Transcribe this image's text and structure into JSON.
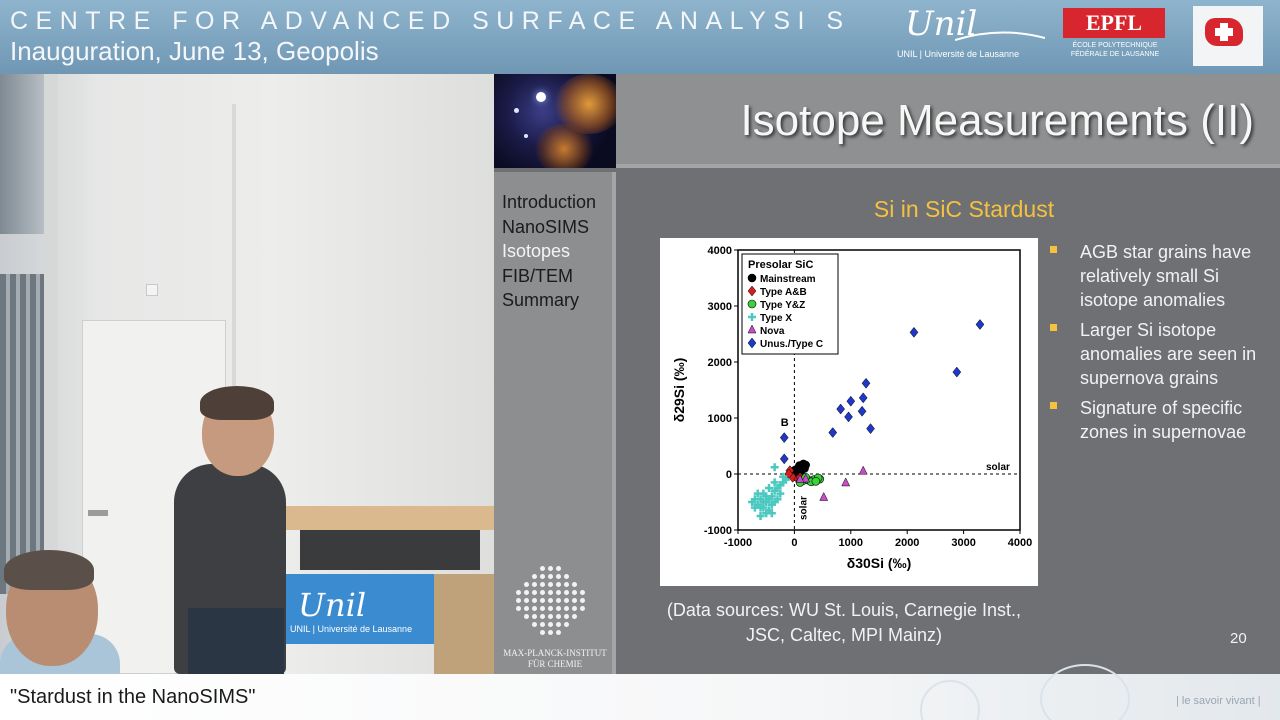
{
  "banner": {
    "title": "CENTRE FOR ADVANCED SURFACE  ANALYSI S",
    "subtitle": "Inauguration, June 13, Geopolis",
    "unil_logo_text": "Unil",
    "unil_logo_sub": "UNIL | Université de Lausanne",
    "epfl_logo_text": "EPFL",
    "epfl_logo_sub": "ÉCOLE POLYTECHNIQUE FÉDÉRALE DE LAUSANNE"
  },
  "lectern": {
    "logo_text": "Unil",
    "logo_sub": "UNIL | Université de Lausanne"
  },
  "slide": {
    "title": "Isotope Measurements (II)",
    "nav": [
      "Introduction",
      "NanoSIMS",
      "Isotopes",
      "FIB/TEM",
      "Summary"
    ],
    "subtitle": "Si in SiC Stardust",
    "bullets": [
      "AGB star grains have relatively small Si isotope anomalies",
      "Larger Si isotope anomalies are seen in supernova grains",
      "Signature of specific zones in supernovae"
    ],
    "sources_line1": "(Data sources: WU St. Louis, Carnegie Inst.,",
    "sources_line2": "JSC, Caltec, MPI Mainz)",
    "page_number": "20",
    "mpi_text_line1": "MAX-PLANCK-INSTITUT",
    "mpi_text_line2": "FÜR CHEMIE"
  },
  "chart_data": {
    "type": "scatter",
    "xlabel": "δ30Si (‰)",
    "ylabel": "δ29Si (‰)",
    "xlim": [
      -1000,
      4000
    ],
    "ylim": [
      -1000,
      4000
    ],
    "xticks": [
      "-1000",
      "0",
      "1000",
      "2000",
      "3000",
      "4000"
    ],
    "yticks": [
      "-1000",
      "0",
      "1000",
      "2000",
      "3000",
      "4000"
    ],
    "legend_title": "Presolar SiC",
    "legend_position": "top-left",
    "reference_lines": {
      "x": 0,
      "y": 0,
      "label": "solar"
    },
    "annotations": [
      {
        "text": "B",
        "x": -170,
        "y": 860
      }
    ],
    "series": [
      {
        "name": "Mainstream",
        "color": "#000000",
        "marker": "circle",
        "points": [
          [
            0,
            0
          ],
          [
            50,
            40
          ],
          [
            100,
            80
          ],
          [
            150,
            120
          ],
          [
            200,
            160
          ],
          [
            -40,
            -20
          ],
          [
            20,
            -40
          ],
          [
            80,
            20
          ],
          [
            120,
            60
          ],
          [
            180,
            100
          ],
          [
            60,
            100
          ],
          [
            -20,
            40
          ],
          [
            140,
            140
          ],
          [
            40,
            -10
          ],
          [
            100,
            30
          ],
          [
            160,
            180
          ],
          [
            90,
            150
          ],
          [
            10,
            70
          ]
        ]
      },
      {
        "name": "Type A&B",
        "color": "#d22020",
        "marker": "diamond",
        "points": [
          [
            -80,
            60
          ],
          [
            -30,
            -60
          ],
          [
            60,
            -90
          ],
          [
            100,
            -60
          ],
          [
            -100,
            0
          ]
        ]
      },
      {
        "name": "Type Y&Z",
        "color": "#3ad23a",
        "marker": "circle",
        "points": [
          [
            150,
            -120
          ],
          [
            250,
            -110
          ],
          [
            350,
            -100
          ],
          [
            450,
            -90
          ],
          [
            200,
            -60
          ],
          [
            300,
            -140
          ],
          [
            100,
            -150
          ],
          [
            420,
            -70
          ],
          [
            380,
            -130
          ]
        ]
      },
      {
        "name": "Type X",
        "color": "#4bc9c0",
        "marker": "cross",
        "points": [
          [
            -400,
            -400
          ],
          [
            -500,
            -500
          ],
          [
            -600,
            -600
          ],
          [
            -700,
            -450
          ],
          [
            -350,
            -300
          ],
          [
            -450,
            -650
          ],
          [
            -550,
            -350
          ],
          [
            -650,
            -550
          ],
          [
            -300,
            -250
          ],
          [
            -250,
            -200
          ],
          [
            -500,
            -700
          ],
          [
            -400,
            -550
          ],
          [
            -600,
            -450
          ],
          [
            -700,
            -600
          ],
          [
            -350,
            -500
          ],
          [
            -200,
            -150
          ],
          [
            -450,
            -250
          ],
          [
            -550,
            -600
          ],
          [
            -300,
            -450
          ],
          [
            -650,
            -350
          ],
          [
            -500,
            -400
          ],
          [
            -400,
            -700
          ],
          [
            -250,
            -350
          ],
          [
            -150,
            -100
          ],
          [
            -350,
            -150
          ],
          [
            -600,
            -750
          ],
          [
            -750,
            -500
          ],
          [
            -450,
            -450
          ],
          [
            -550,
            -500
          ],
          [
            -350,
            120
          ],
          [
            -200,
            -50
          ]
        ]
      },
      {
        "name": "Nova",
        "color": "#c94bc9",
        "marker": "triangle",
        "points": [
          [
            520,
            -420
          ],
          [
            910,
            -160
          ],
          [
            1220,
            50
          ],
          [
            200,
            -90
          ],
          [
            100,
            -100
          ]
        ]
      },
      {
        "name": "Unus./Type C",
        "color": "#2038c8",
        "marker": "diamond",
        "points": [
          [
            -180,
            650
          ],
          [
            -180,
            270
          ],
          [
            2120,
            2530
          ],
          [
            3290,
            2670
          ],
          [
            2880,
            1820
          ],
          [
            1270,
            1620
          ],
          [
            1220,
            1360
          ],
          [
            1000,
            1300
          ],
          [
            820,
            1160
          ],
          [
            1200,
            1120
          ],
          [
            960,
            1020
          ],
          [
            680,
            740
          ],
          [
            1350,
            810
          ]
        ]
      }
    ]
  },
  "caption": {
    "text": "\"Stardust in the NanoSIMS\"",
    "tagline": "| le savoir vivant |"
  }
}
